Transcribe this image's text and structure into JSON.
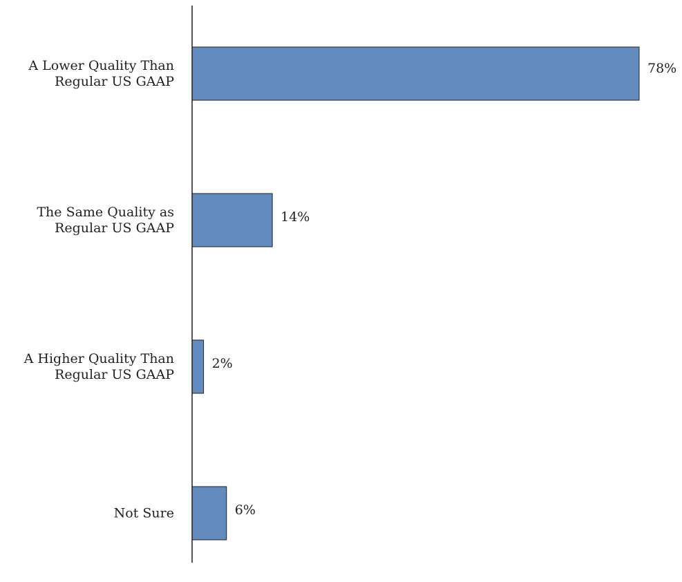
{
  "chart_data": {
    "type": "bar",
    "orientation": "horizontal",
    "categories": [
      [
        "A Lower Quality Than",
        "Regular US GAAP"
      ],
      [
        "The Same Quality as",
        "Regular US GAAP"
      ],
      [
        "A Higher Quality Than",
        "Regular US GAAP"
      ],
      [
        "Not Sure"
      ]
    ],
    "values": [
      78,
      14,
      2,
      6
    ],
    "value_labels": [
      "78%",
      "14%",
      "2%",
      "6%"
    ],
    "xlim": [
      0,
      78
    ],
    "bar_color": "#648bbf",
    "bar_border_color": "#231f20",
    "axis_color": "#231f20",
    "grid": false,
    "legend": "none"
  }
}
